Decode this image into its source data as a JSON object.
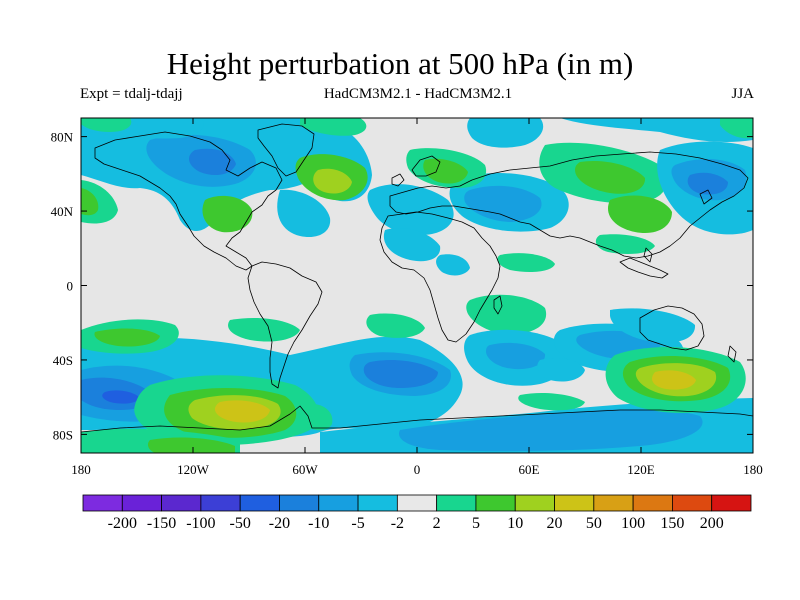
{
  "title": "Height perturbation at 500 hPa (in m)",
  "subtitle_left": "Expt = tdalj-tdajj",
  "subtitle_center": "HadCM3M2.1 - HadCM3M2.1",
  "subtitle_right": "JJA",
  "map": {
    "lon_range": [
      -180,
      180
    ],
    "lat_range": [
      -90,
      90
    ],
    "background_color": "#e6e6e6",
    "coastline_color": "#000000",
    "lon_ticks": [
      {
        "value": -180,
        "label": "180"
      },
      {
        "value": -120,
        "label": "120W"
      },
      {
        "value": -60,
        "label": "60W"
      },
      {
        "value": 0,
        "label": "0"
      },
      {
        "value": 60,
        "label": "60E"
      },
      {
        "value": 120,
        "label": "120E"
      },
      {
        "value": 180,
        "label": "180"
      }
    ],
    "lat_ticks": [
      {
        "value": 80,
        "label": "80N"
      },
      {
        "value": 40,
        "label": "40N"
      },
      {
        "value": 0,
        "label": "0"
      },
      {
        "value": -40,
        "label": "40S"
      },
      {
        "value": -80,
        "label": "80S"
      }
    ]
  },
  "colorbar": {
    "colors": [
      "#7d2be0",
      "#6a22d8",
      "#5b28cf",
      "#3c3fd6",
      "#1f5fe0",
      "#1b80dc",
      "#179fe0",
      "#15bde0",
      "#e8e8e8",
      "#18d68f",
      "#3ec82f",
      "#9fd11f",
      "#cdc317",
      "#d8a015",
      "#dc7812",
      "#dd4a10",
      "#d61412"
    ],
    "labels": [
      "-200",
      "-150",
      "-100",
      "-50",
      "-20",
      "-10",
      "-5",
      "-2",
      "2",
      "5",
      "10",
      "20",
      "50",
      "100",
      "150",
      "200"
    ]
  }
}
